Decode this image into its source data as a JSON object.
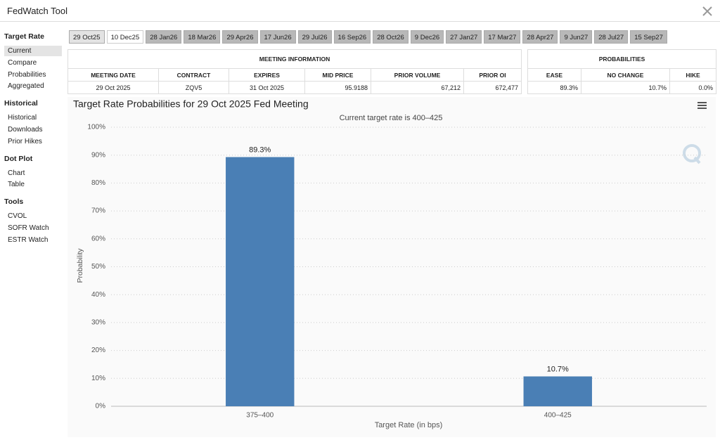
{
  "header": {
    "title": "FedWatch Tool"
  },
  "sidebar": [
    {
      "title": "Target Rate",
      "items": [
        "Current",
        "Compare",
        "Probabilities",
        "Aggregated"
      ]
    },
    {
      "title": "Historical",
      "items": [
        "Historical",
        "Downloads",
        "Prior Hikes"
      ]
    },
    {
      "title": "Dot Plot",
      "items": [
        "Chart",
        "Table"
      ]
    },
    {
      "title": "Tools",
      "items": [
        "CVOL",
        "SOFR Watch",
        "ESTR Watch"
      ]
    }
  ],
  "tabs": [
    "29 Oct25",
    "10 Dec25",
    "28 Jan26",
    "18 Mar26",
    "29 Apr26",
    "17 Jun26",
    "29 Jul26",
    "16 Sep26",
    "28 Oct26",
    "9 Dec26",
    "27 Jan27",
    "17 Mar27",
    "28 Apr27",
    "9 Jun27",
    "28 Jul27",
    "15 Sep27"
  ],
  "meeting_table": {
    "title": "MEETING INFORMATION",
    "headers": [
      "MEETING DATE",
      "CONTRACT",
      "EXPIRES",
      "MID PRICE",
      "PRIOR VOLUME",
      "PRIOR OI"
    ],
    "rows": [
      [
        "29 Oct 2025",
        "ZQV5",
        "31 Oct 2025",
        "95.9188",
        "67,212",
        "672,477"
      ]
    ]
  },
  "probability_table": {
    "title": "PROBABILITIES",
    "headers": [
      "EASE",
      "NO CHANGE",
      "HIKE"
    ],
    "rows": [
      [
        "89.3%",
        "10.7%",
        "0.0%"
      ]
    ]
  },
  "chart_data": {
    "type": "bar",
    "title": "Target Rate Probabilities for 29 Oct 2025 Fed Meeting",
    "subtitle": "Current target rate is 400–425",
    "x_label": "Target Rate (in bps)",
    "y_label": "Probability",
    "categories": [
      "375–400",
      "400–425"
    ],
    "values": [
      89.3,
      10.7
    ],
    "value_labels": [
      "89.3%",
      "10.7%"
    ],
    "color": "#4a7fb5",
    "ylim": [
      0,
      100
    ],
    "yticks": [
      {
        "value": 0,
        "label": "0%"
      },
      {
        "value": 10,
        "label": "10%"
      },
      {
        "value": 20,
        "label": "20%"
      },
      {
        "value": 30,
        "label": "30%"
      },
      {
        "value": 40,
        "label": "40%"
      },
      {
        "value": 50,
        "label": "50%"
      },
      {
        "value": 60,
        "label": "60%"
      },
      {
        "value": 70,
        "label": "70%"
      },
      {
        "value": 80,
        "label": "80%"
      },
      {
        "value": 90,
        "label": "90%"
      },
      {
        "value": 100,
        "label": "100%"
      }
    ],
    "grid": true
  }
}
